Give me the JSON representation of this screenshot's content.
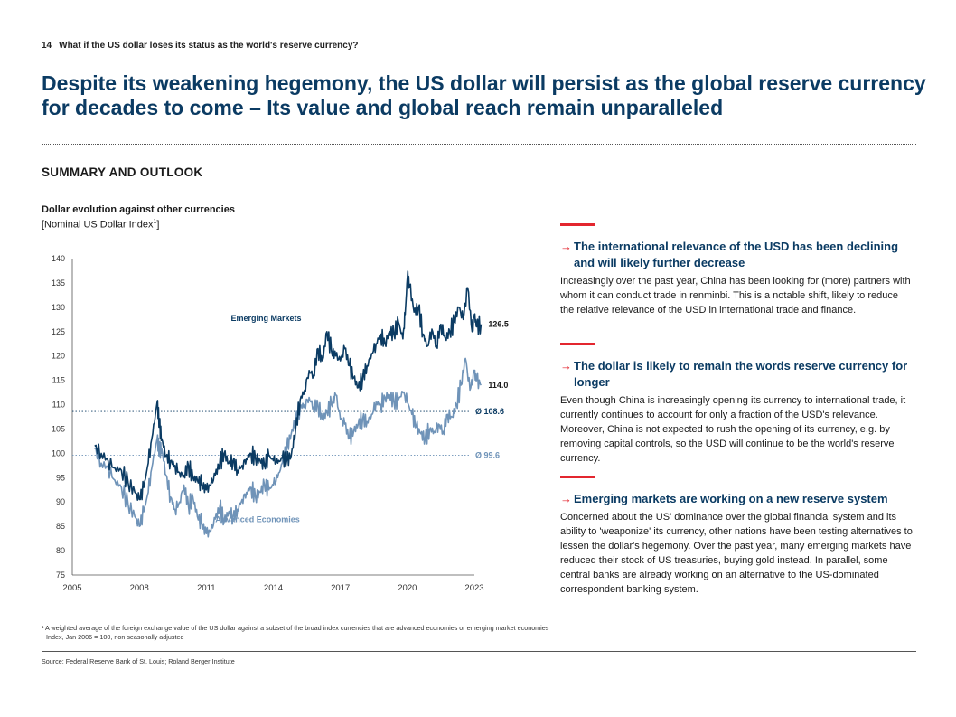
{
  "header": {
    "page_number": "14",
    "running_title": "What if the US dollar loses its status as the world's reserve currency?"
  },
  "main_title": "Despite its weakening hegemony, the US dollar will persist as the global reserve currency for decades to come – Its value and global reach remain unparalleled",
  "section_heading": "SUMMARY AND OUTLOOK",
  "chart": {
    "title": "Dollar evolution against other currencies",
    "subtitle": "[Nominal US Dollar Index",
    "subtitle_sup": "1",
    "subtitle_end": "]"
  },
  "chart_data": {
    "type": "line",
    "title": "Dollar evolution against other currencies",
    "subtitle": "[Nominal US Dollar Index1]",
    "ylim": [
      75,
      140
    ],
    "yticks": [
      "140",
      "135",
      "130",
      "125",
      "120",
      "115",
      "110",
      "105",
      "100",
      "95",
      "90",
      "85",
      "80",
      "75"
    ],
    "xlim": [
      2005,
      2023
    ],
    "xticks": [
      "2005",
      "2008",
      "2011",
      "2014",
      "2017",
      "2020",
      "2023"
    ],
    "grid": false,
    "series": [
      {
        "name": "Emerging Markets",
        "color": "#0b3b63",
        "end_label": "126.5",
        "x": [
          2006.0,
          2006.3,
          2006.6,
          2006.9,
          2007.2,
          2007.5,
          2007.8,
          2008.0,
          2008.2,
          2008.4,
          2008.6,
          2008.8,
          2008.9,
          2009.0,
          2009.2,
          2009.4,
          2009.6,
          2009.8,
          2010.0,
          2010.2,
          2010.4,
          2010.6,
          2010.8,
          2011.0,
          2011.2,
          2011.4,
          2011.6,
          2011.8,
          2012.0,
          2012.2,
          2012.4,
          2012.6,
          2012.8,
          2013.0,
          2013.2,
          2013.4,
          2013.6,
          2013.8,
          2014.0,
          2014.2,
          2014.4,
          2014.6,
          2014.8,
          2015.0,
          2015.2,
          2015.4,
          2015.6,
          2015.8,
          2016.0,
          2016.2,
          2016.4,
          2016.6,
          2016.8,
          2017.0,
          2017.2,
          2017.4,
          2017.6,
          2017.8,
          2018.0,
          2018.2,
          2018.4,
          2018.6,
          2018.8,
          2019.0,
          2019.2,
          2019.4,
          2019.6,
          2019.8,
          2019.9,
          2020.0,
          2020.1,
          2020.3,
          2020.5,
          2020.7,
          2020.9,
          2021.1,
          2021.3,
          2021.5,
          2021.7,
          2021.9,
          2022.1,
          2022.3,
          2022.5,
          2022.7,
          2022.9,
          2023.0,
          2023.1,
          2023.3
        ],
        "y": [
          101.5,
          100.0,
          98.5,
          97.0,
          96.5,
          94.0,
          92.0,
          90.5,
          93.0,
          98.0,
          104.0,
          110.5,
          106.0,
          103.0,
          99.5,
          98.5,
          97.5,
          96.0,
          95.5,
          97.5,
          95.0,
          94.5,
          93.5,
          92.5,
          93.5,
          95.5,
          98.0,
          100.0,
          98.0,
          98.5,
          96.5,
          97.5,
          99.0,
          100.0,
          99.0,
          98.5,
          97.5,
          99.5,
          98.5,
          98.0,
          99.0,
          98.5,
          99.5,
          105.0,
          111.0,
          113.0,
          117.0,
          116.0,
          121.5,
          119.0,
          125.0,
          121.0,
          120.0,
          119.0,
          121.5,
          118.0,
          115.5,
          113.5,
          115.5,
          118.0,
          120.5,
          122.5,
          124.5,
          122.5,
          125.0,
          124.5,
          127.0,
          123.5,
          128.5,
          136.0,
          134.5,
          129.0,
          130.0,
          124.5,
          122.0,
          125.5,
          122.0,
          126.5,
          123.5,
          125.0,
          127.0,
          130.0,
          127.5,
          134.0,
          125.0,
          128.5,
          126.0,
          126.5
        ]
      },
      {
        "name": "Advanced Economies",
        "color": "#6f93b8",
        "end_label": "114.0",
        "x": [
          2006.0,
          2006.3,
          2006.6,
          2006.9,
          2007.2,
          2007.5,
          2007.8,
          2008.0,
          2008.2,
          2008.4,
          2008.6,
          2008.8,
          2008.9,
          2009.0,
          2009.2,
          2009.4,
          2009.6,
          2009.8,
          2010.0,
          2010.2,
          2010.4,
          2010.6,
          2010.8,
          2011.0,
          2011.2,
          2011.4,
          2011.6,
          2011.8,
          2012.0,
          2012.2,
          2012.4,
          2012.6,
          2012.8,
          2013.0,
          2013.2,
          2013.4,
          2013.6,
          2013.8,
          2014.0,
          2014.2,
          2014.4,
          2014.6,
          2014.8,
          2015.0,
          2015.2,
          2015.4,
          2015.6,
          2015.8,
          2016.0,
          2016.2,
          2016.4,
          2016.6,
          2016.8,
          2017.0,
          2017.2,
          2017.4,
          2017.6,
          2017.8,
          2018.0,
          2018.2,
          2018.4,
          2018.6,
          2018.8,
          2019.0,
          2019.2,
          2019.4,
          2019.6,
          2019.8,
          2020.0,
          2020.2,
          2020.4,
          2020.6,
          2020.8,
          2021.0,
          2021.2,
          2021.4,
          2021.6,
          2021.8,
          2022.0,
          2022.2,
          2022.4,
          2022.6,
          2022.8,
          2023.0,
          2023.1,
          2023.3
        ],
        "y": [
          101.0,
          98.0,
          97.0,
          94.5,
          93.0,
          89.5,
          87.0,
          85.0,
          88.0,
          92.0,
          98.0,
          103.0,
          100.5,
          101.0,
          95.5,
          91.0,
          88.5,
          90.0,
          93.5,
          89.0,
          91.0,
          87.0,
          85.5,
          83.5,
          84.0,
          86.5,
          89.0,
          86.0,
          88.0,
          87.0,
          88.5,
          90.5,
          92.0,
          93.0,
          91.0,
          92.0,
          93.5,
          92.5,
          93.5,
          95.0,
          98.0,
          101.0,
          104.0,
          107.0,
          109.5,
          110.0,
          111.5,
          109.5,
          110.0,
          107.0,
          108.5,
          110.0,
          112.0,
          107.0,
          106.0,
          103.0,
          104.5,
          106.0,
          107.0,
          106.5,
          108.0,
          110.5,
          110.0,
          111.5,
          112.0,
          110.5,
          111.0,
          112.5,
          110.5,
          108.0,
          105.5,
          104.0,
          103.0,
          105.0,
          104.5,
          106.0,
          104.5,
          108.0,
          107.5,
          110.0,
          114.0,
          119.5,
          113.0,
          116.5,
          115.0,
          114.0
        ]
      }
    ],
    "reference_lines": [
      {
        "value": 108.6,
        "label": "Ø 108.6",
        "series": "Emerging Markets"
      },
      {
        "value": 99.6,
        "label": "Ø 99.6",
        "series": "Advanced Economies"
      }
    ]
  },
  "sections": [
    {
      "heading": "The international relevance of the USD has been declining and will likely further decrease",
      "body": "Increasingly over the past year, China has been looking for (more) partners with whom it can conduct trade in renminbi. This is a notable shift, likely to reduce the relative relevance of the USD in international trade and finance."
    },
    {
      "heading": "The dollar is likely to remain the words reserve currency for longer",
      "body": "Even though China is increasingly opening its currency to international trade, it currently continues to account for only a fraction of the USD's relevance. Moreover, China is not expected to rush the opening of its currency, e.g. by removing capital controls, so the USD will continue to be the world's reserve currency."
    },
    {
      "heading": "Emerging markets are working on a new reserve system",
      "body": "Concerned about the US' dominance over the global financial system and its ability to 'weaponize' its currency, other nations have been testing alternatives to lessen the dollar's hegemony. Over the past year, many emerging markets have reduced their stock of US treasuries, buying gold instead. In parallel, some central banks are already working on an alternative to the US-dominated correspondent banking system."
    }
  ],
  "footnote": {
    "line1": "¹ A weighted average of the foreign exchange value of the US dollar against a subset of the broad index currencies that are advanced economies or emerging market economies",
    "line2": "Index, Jan 2006 = 100, non seasonally adjusted"
  },
  "source": "Source: Federal Reserve Bank of St. Louis; Roland Berger Institute"
}
